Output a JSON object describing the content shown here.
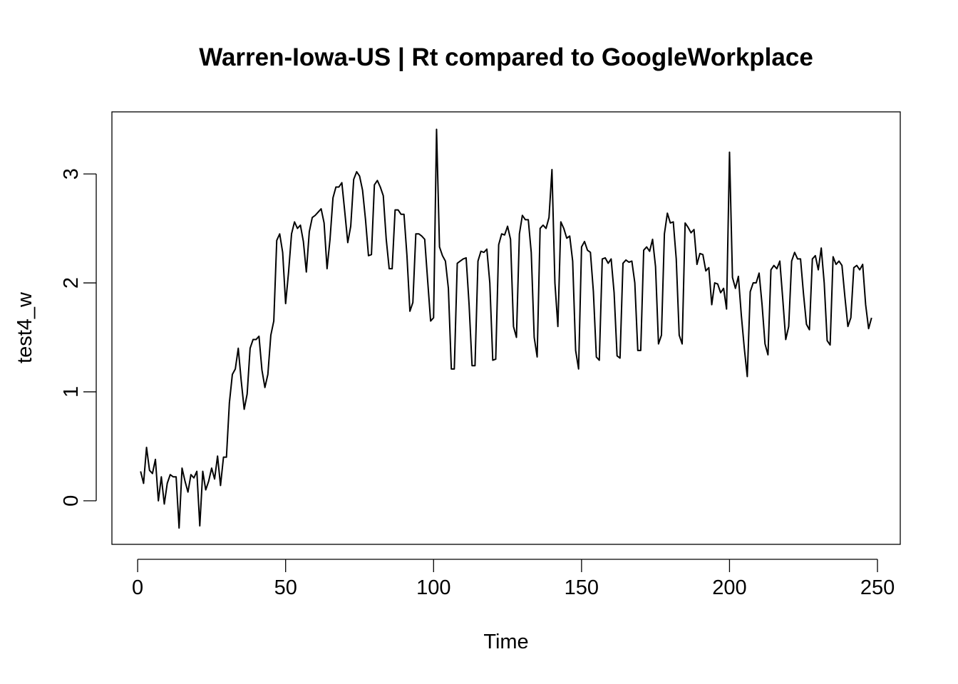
{
  "chart_data": {
    "type": "line",
    "title": "Warren-Iowa-US | Rt compared to GoogleWorkplace",
    "xlabel": "Time",
    "ylabel": "test4_w",
    "xlim": [
      -8.7,
      257.7
    ],
    "ylim": [
      -0.4,
      3.57
    ],
    "x_ticks": [
      0,
      50,
      100,
      150,
      200,
      250
    ],
    "x_tick_labels": [
      "0",
      "50",
      "100",
      "150",
      "200",
      "250"
    ],
    "y_ticks": [
      0,
      1,
      2,
      3
    ],
    "y_tick_labels": [
      "0",
      "1",
      "2",
      "3"
    ],
    "grid": false,
    "legend": "none",
    "line_color": "#000000",
    "series": [
      {
        "x_start": 1,
        "x_step": 1,
        "values": [
          0.27,
          0.16,
          0.49,
          0.28,
          0.25,
          0.38,
          0.0,
          0.22,
          -0.03,
          0.16,
          0.24,
          0.22,
          0.22,
          -0.25,
          0.3,
          0.18,
          0.08,
          0.24,
          0.21,
          0.27,
          -0.23,
          0.27,
          0.1,
          0.18,
          0.3,
          0.2,
          0.41,
          0.14,
          0.4,
          0.4,
          0.9,
          1.16,
          1.21,
          1.4,
          1.1,
          0.84,
          0.98,
          1.4,
          1.48,
          1.48,
          1.51,
          1.2,
          1.04,
          1.16,
          1.52,
          1.65,
          2.39,
          2.45,
          2.28,
          1.81,
          2.1,
          2.45,
          2.56,
          2.5,
          2.53,
          2.38,
          2.1,
          2.47,
          2.6,
          2.62,
          2.65,
          2.68,
          2.55,
          2.13,
          2.4,
          2.78,
          2.88,
          2.88,
          2.92,
          2.65,
          2.37,
          2.52,
          2.95,
          3.02,
          2.98,
          2.85,
          2.58,
          2.25,
          2.26,
          2.9,
          2.94,
          2.88,
          2.8,
          2.4,
          2.13,
          2.13,
          2.67,
          2.67,
          2.63,
          2.63,
          2.25,
          1.74,
          1.82,
          2.45,
          2.45,
          2.43,
          2.4,
          2.02,
          1.65,
          1.68,
          3.41,
          2.33,
          2.25,
          2.2,
          1.95,
          1.21,
          1.21,
          2.18,
          2.2,
          2.22,
          2.23,
          1.8,
          1.24,
          1.24,
          2.2,
          2.29,
          2.28,
          2.31,
          2.0,
          1.29,
          1.3,
          2.35,
          2.45,
          2.44,
          2.52,
          2.4,
          1.6,
          1.5,
          2.45,
          2.62,
          2.58,
          2.58,
          2.28,
          1.5,
          1.32,
          2.5,
          2.53,
          2.5,
          2.6,
          3.04,
          2.0,
          1.6,
          2.56,
          2.5,
          2.41,
          2.43,
          2.2,
          1.38,
          1.21,
          2.33,
          2.38,
          2.3,
          2.28,
          1.92,
          1.32,
          1.29,
          2.22,
          2.23,
          2.18,
          2.22,
          1.91,
          1.33,
          1.31,
          2.18,
          2.21,
          2.19,
          2.2,
          2.0,
          1.38,
          1.38,
          2.3,
          2.33,
          2.29,
          2.4,
          2.15,
          1.44,
          1.52,
          2.45,
          2.64,
          2.55,
          2.56,
          2.22,
          1.52,
          1.44,
          2.55,
          2.51,
          2.46,
          2.49,
          2.17,
          2.27,
          2.26,
          2.11,
          2.14,
          1.8,
          2.0,
          1.99,
          1.91,
          1.95,
          1.76,
          3.2,
          2.05,
          1.95,
          2.06,
          1.7,
          1.4,
          1.14,
          1.92,
          2.0,
          2.0,
          2.09,
          1.8,
          1.44,
          1.34,
          2.12,
          2.16,
          2.13,
          2.2,
          1.85,
          1.48,
          1.6,
          2.2,
          2.28,
          2.22,
          2.22,
          1.9,
          1.62,
          1.57,
          2.22,
          2.25,
          2.12,
          2.32,
          2.0,
          1.47,
          1.43,
          2.24,
          2.17,
          2.2,
          2.16,
          1.87,
          1.6,
          1.68,
          2.14,
          2.16,
          2.12,
          2.17,
          1.8,
          1.58,
          1.68
        ]
      }
    ]
  }
}
